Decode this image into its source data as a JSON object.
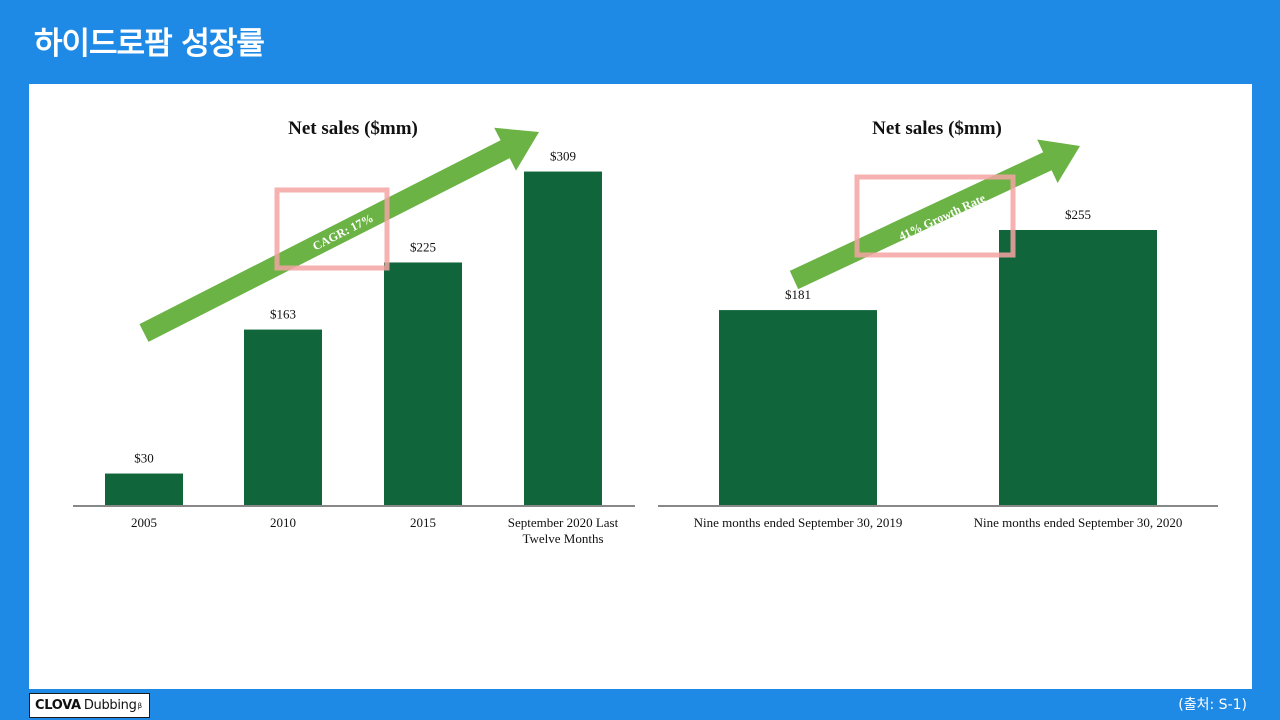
{
  "slide": {
    "title": "하이드로팜 성장률",
    "source": "(출처: S-1)"
  },
  "logo": {
    "brand": "CLOVA",
    "product": "Dubbing",
    "mark": "β"
  },
  "colors": {
    "background": "#1f8ae6",
    "bar": "#11653b",
    "arrow": "#6ab344",
    "highlight_box": "#f4a3a3",
    "axis": "#888888"
  },
  "chart_data": [
    {
      "type": "bar",
      "title": "Net sales ($mm)",
      "categories": [
        "2005",
        "2010",
        "2015",
        "September 2020 Last Twelve Months"
      ],
      "category_lines": [
        [
          "2005"
        ],
        [
          "2010"
        ],
        [
          "2015"
        ],
        [
          "September 2020 Last",
          "Twelve Months"
        ]
      ],
      "values": [
        30,
        163,
        225,
        309
      ],
      "value_labels": [
        "$30",
        "$163",
        "$225",
        "$309"
      ],
      "ylim": [
        0,
        340
      ],
      "arrow_label": "CAGR: 17%",
      "highlighted": "arrow_label"
    },
    {
      "type": "bar",
      "title": "Net sales ($mm)",
      "categories": [
        "Nine months ended September 30, 2019",
        "Nine months ended September 30, 2020"
      ],
      "category_lines": [
        [
          "Nine months ended September 30, 2019"
        ],
        [
          "Nine months ended September 30, 2020"
        ]
      ],
      "values": [
        181,
        255
      ],
      "value_labels": [
        "$181",
        "$255"
      ],
      "ylim": [
        0,
        340
      ],
      "arrow_label": "41% Growth Rate",
      "highlighted": "arrow_label"
    }
  ]
}
